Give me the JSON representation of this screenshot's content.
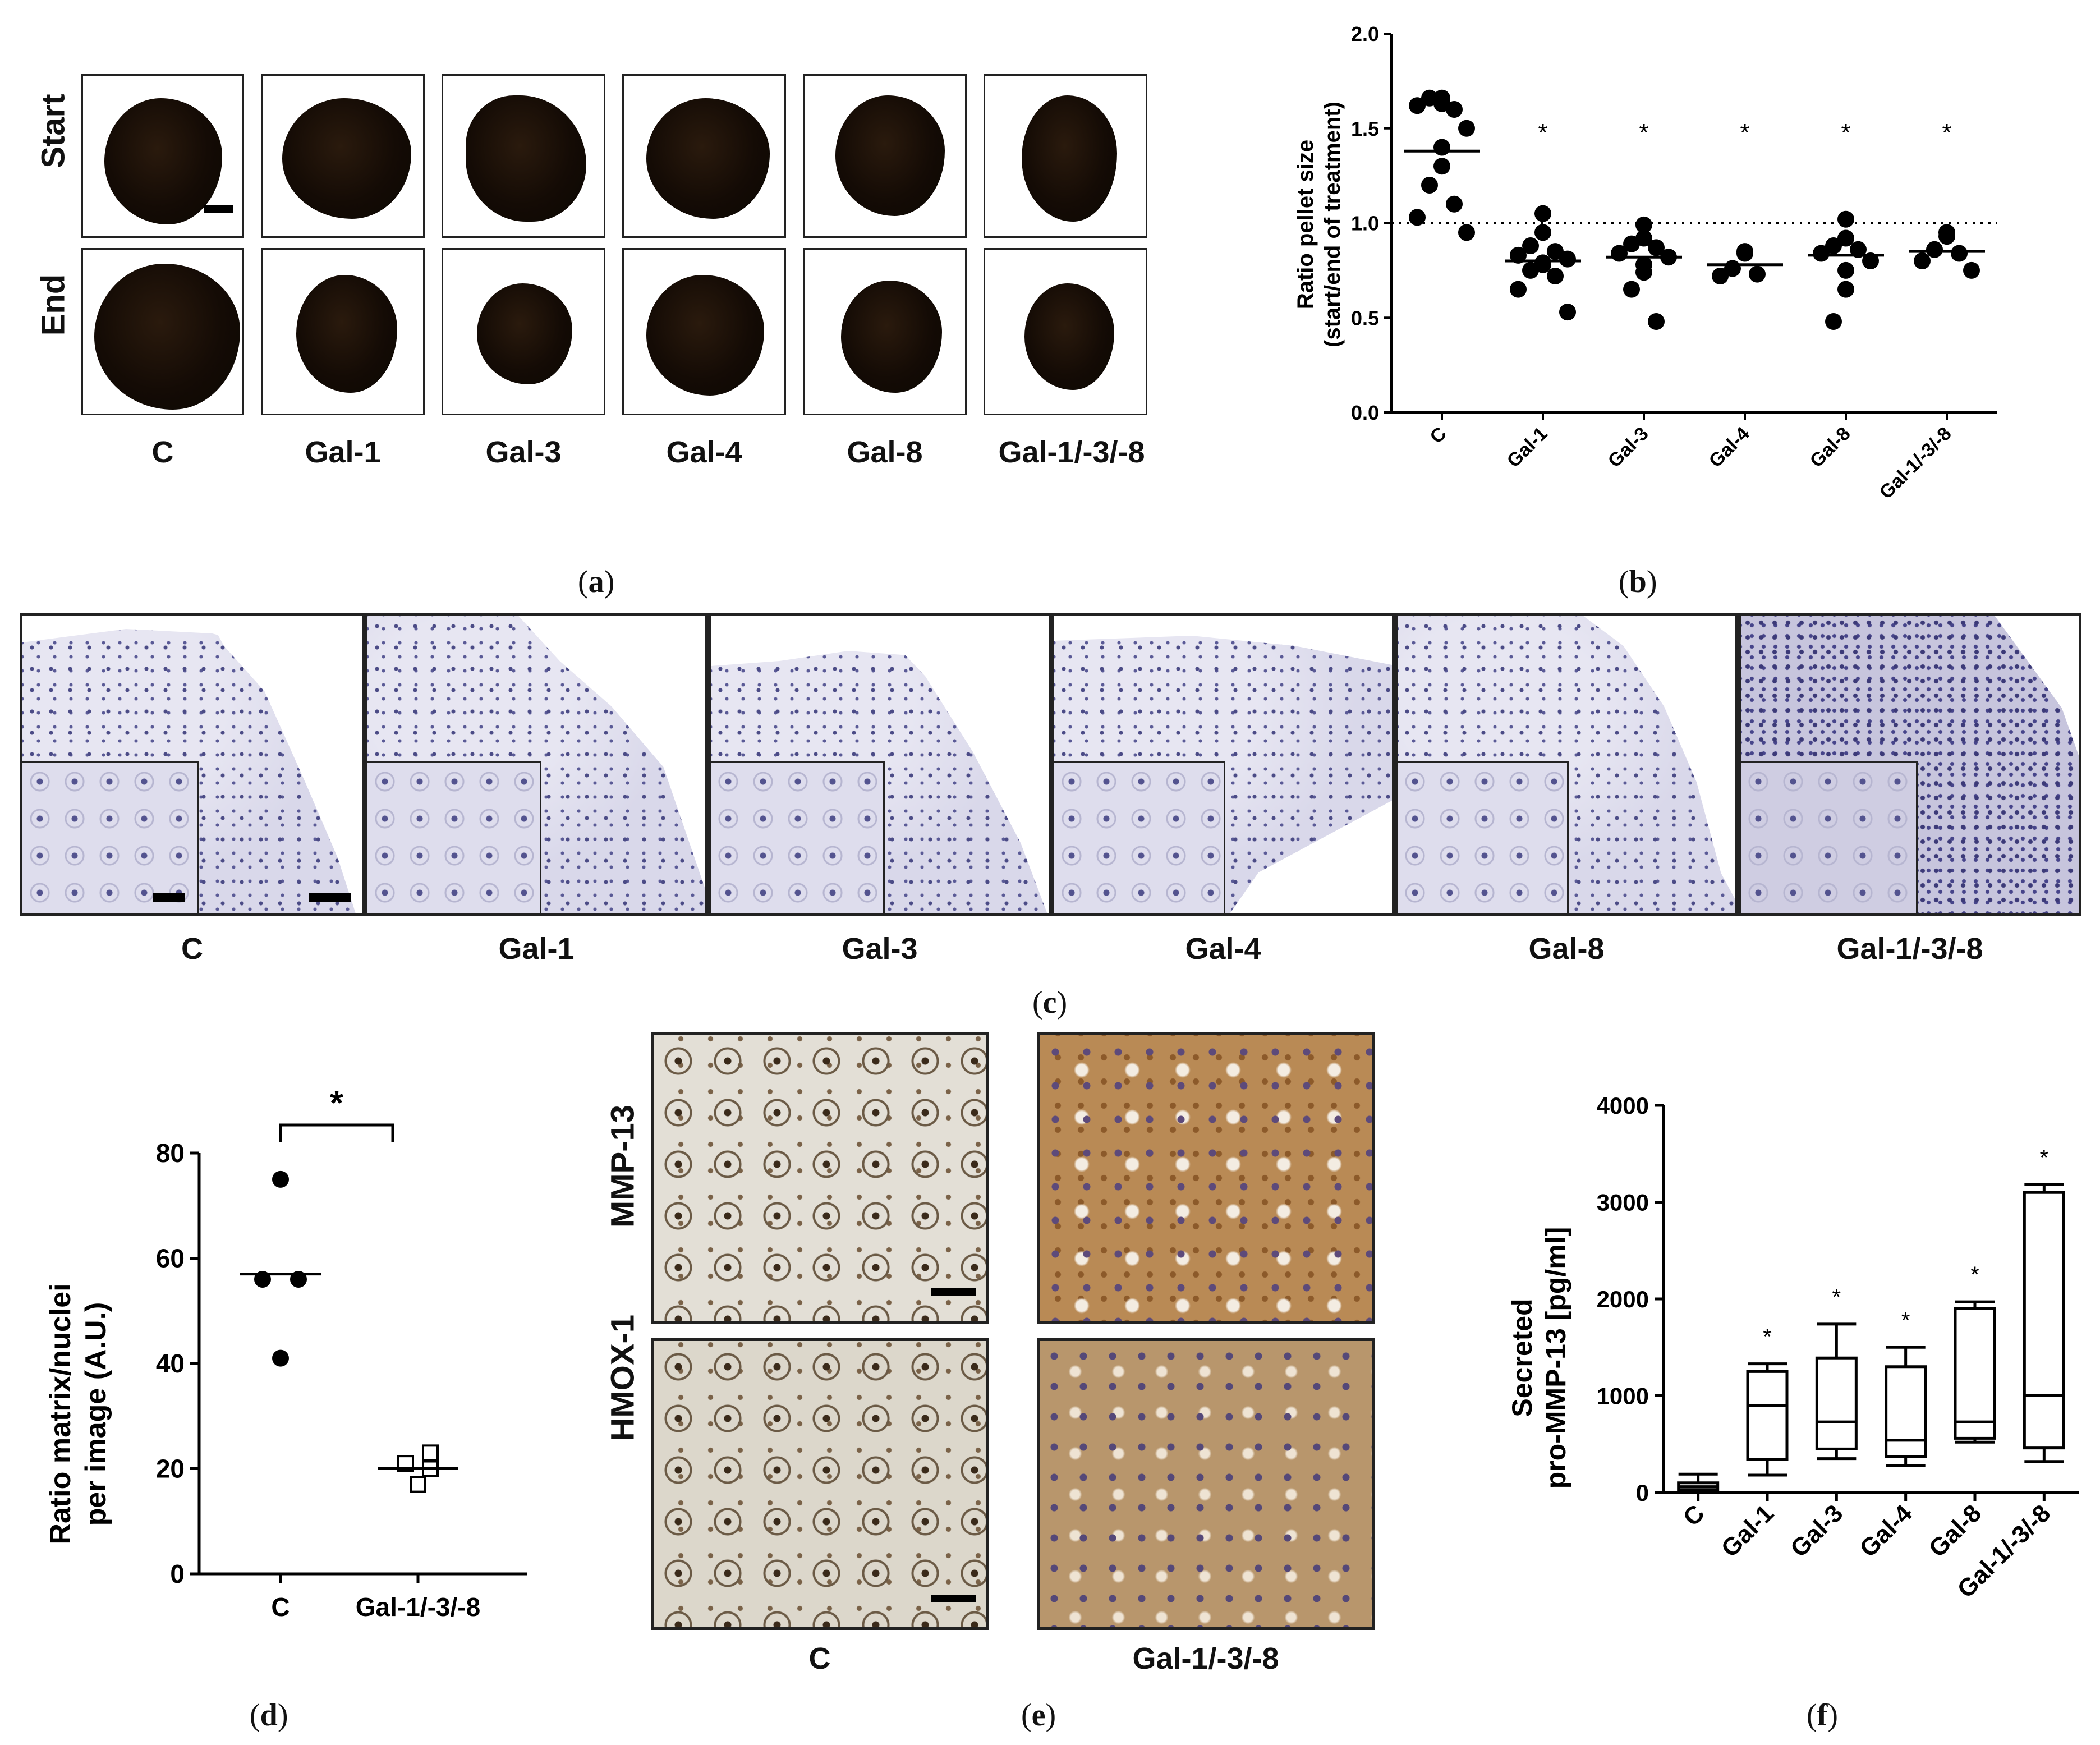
{
  "panel_labels": {
    "a": "a",
    "b": "b",
    "c": "c",
    "d": "d",
    "e": "e",
    "f": "f"
  },
  "panel_a": {
    "row_labels": [
      "Start",
      "End"
    ],
    "groups": [
      "C",
      "Gal-1",
      "Gal-3",
      "Gal-4",
      "Gal-8",
      "Gal-1/-3/-8"
    ]
  },
  "panel_c": {
    "groups": [
      "C",
      "Gal-1",
      "Gal-3",
      "Gal-4",
      "Gal-8",
      "Gal-1/-3/-8"
    ]
  },
  "panel_e": {
    "row_labels": [
      "MMP-13",
      "HMOX-1"
    ],
    "groups": [
      "C",
      "Gal-1/-3/-8"
    ]
  },
  "colors": {
    "points": "#000000",
    "axis": "#000000",
    "reference_line": "#000000"
  },
  "chart_data": [
    {
      "id": "b",
      "type": "scatter",
      "ylabel_line1": "Ratio pellet size",
      "ylabel_line2": "(start/end of treatment)",
      "ylim": [
        0.0,
        2.0
      ],
      "yticks": [
        "0.0",
        "0.5",
        "1.0",
        "1.5",
        "2.0"
      ],
      "ytick_values": [
        0.0,
        0.5,
        1.0,
        1.5,
        2.0
      ],
      "categories": [
        "C",
        "Gal-1",
        "Gal-3",
        "Gal-4",
        "Gal-8",
        "Gal-1/-3/-8"
      ],
      "reference_line": 1.0,
      "significance": [
        "",
        "*",
        "*",
        "*",
        "*",
        "*"
      ],
      "points": [
        [
          1.66,
          1.63,
          1.66,
          1.6,
          1.62,
          1.5,
          1.4,
          1.3,
          1.2,
          1.1,
          1.03,
          0.95
        ],
        [
          1.05,
          0.95,
          0.88,
          0.85,
          0.83,
          0.81,
          0.79,
          0.78,
          0.75,
          0.72,
          0.65,
          0.53
        ],
        [
          0.99,
          0.92,
          0.89,
          0.87,
          0.84,
          0.82,
          0.78,
          0.74,
          0.65,
          0.48
        ],
        [
          0.85,
          0.84,
          0.76,
          0.73,
          0.72
        ],
        [
          1.02,
          0.92,
          0.88,
          0.86,
          0.84,
          0.8,
          0.75,
          0.65,
          0.48
        ],
        [
          0.95,
          0.93,
          0.86,
          0.84,
          0.8,
          0.75
        ]
      ],
      "means": [
        1.38,
        0.8,
        0.82,
        0.78,
        0.83,
        0.85
      ]
    },
    {
      "id": "d",
      "type": "scatter",
      "ylabel_line1": "Ratio matrix/nuclei",
      "ylabel_line2": "per image (A.U.)",
      "ylim": [
        0,
        80
      ],
      "yticks": [
        "0",
        "20",
        "40",
        "60",
        "80"
      ],
      "ytick_values": [
        0,
        20,
        40,
        60,
        80
      ],
      "categories": [
        "C",
        "Gal-1/-3/-8"
      ],
      "significance_bracket": "*",
      "points": [
        [
          75,
          56,
          56,
          41
        ],
        [
          23,
          21,
          20,
          17
        ]
      ],
      "markers": [
        "filled-circle",
        "open-square"
      ],
      "means": [
        57,
        20
      ]
    },
    {
      "id": "f",
      "type": "box",
      "ylabel_line1": "Secreted",
      "ylabel_line2": "pro-MMP-13 [pg/ml]",
      "ylim": [
        0,
        4000
      ],
      "yticks": [
        "0",
        "1000",
        "2000",
        "3000",
        "4000"
      ],
      "ytick_values": [
        0,
        1000,
        2000,
        3000,
        4000
      ],
      "categories": [
        "C",
        "Gal-1",
        "Gal-3",
        "Gal-4",
        "Gal-8",
        "Gal-1/-3/-8"
      ],
      "significance": [
        "",
        "*",
        "*",
        "*",
        "*",
        "*"
      ],
      "boxes": [
        {
          "min": 10,
          "q1": 30,
          "median": 60,
          "q3": 100,
          "max": 190
        },
        {
          "min": 180,
          "q1": 340,
          "median": 900,
          "q3": 1250,
          "max": 1330
        },
        {
          "min": 350,
          "q1": 450,
          "median": 730,
          "q3": 1390,
          "max": 1740
        },
        {
          "min": 280,
          "q1": 370,
          "median": 540,
          "q3": 1300,
          "max": 1500
        },
        {
          "min": 520,
          "q1": 560,
          "median": 730,
          "q3": 1900,
          "max": 1970
        },
        {
          "min": 320,
          "q1": 460,
          "median": 1000,
          "q3": 3100,
          "max": 3180
        }
      ]
    }
  ]
}
